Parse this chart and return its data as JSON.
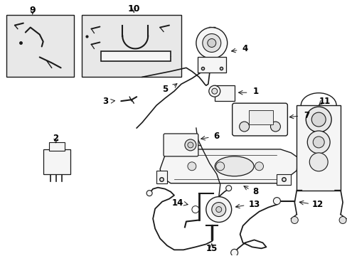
{
  "bg_color": "#ffffff",
  "line_color": "#1a1a1a",
  "fill_color": "#f5f5f5",
  "box_bg": "#e8e8e8",
  "figsize": [
    4.89,
    3.6
  ],
  "dpi": 100
}
